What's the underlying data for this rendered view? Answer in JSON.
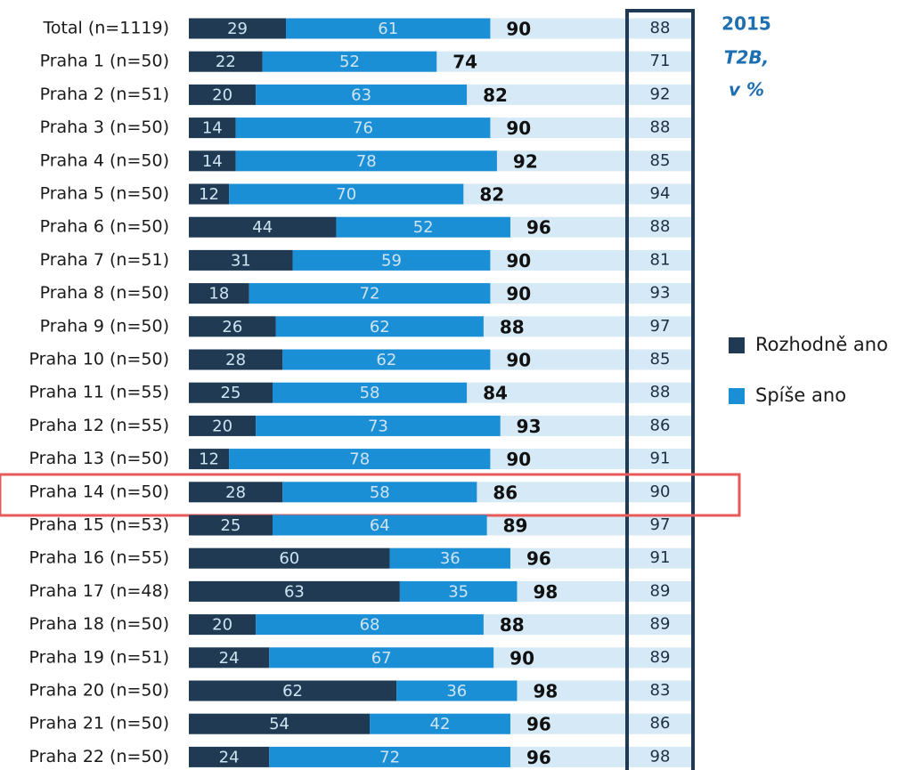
{
  "chart_data": {
    "type": "bar",
    "orientation": "horizontal",
    "stacked": true,
    "categories": [
      "Total (n=1119)",
      "Praha 1 (n=50)",
      "Praha 2 (n=51)",
      "Praha 3 (n=50)",
      "Praha 4 (n=50)",
      "Praha 5 (n=50)",
      "Praha 6 (n=50)",
      "Praha 7 (n=51)",
      "Praha 8 (n=50)",
      "Praha 9 (n=50)",
      "Praha 10 (n=50)",
      "Praha 11 (n=55)",
      "Praha 12 (n=55)",
      "Praha 13 (n=50)",
      "Praha 14 (n=50)",
      "Praha 15 (n=53)",
      "Praha 16 (n=55)",
      "Praha 17 (n=48)",
      "Praha 18 (n=50)",
      "Praha 19 (n=51)",
      "Praha 20 (n=50)",
      "Praha 21 (n=50)",
      "Praha 22 (n=50)"
    ],
    "series": [
      {
        "name": "Rozhodně ano",
        "color": "#1f3a52",
        "values": [
          29,
          22,
          20,
          14,
          14,
          12,
          44,
          31,
          18,
          26,
          28,
          25,
          20,
          12,
          28,
          25,
          60,
          63,
          20,
          24,
          62,
          54,
          24
        ]
      },
      {
        "name": "Spíše ano",
        "color": "#1b8fd6",
        "values": [
          61,
          52,
          63,
          76,
          78,
          70,
          52,
          59,
          72,
          62,
          62,
          58,
          73,
          78,
          58,
          64,
          36,
          35,
          68,
          67,
          36,
          42,
          72
        ]
      }
    ],
    "totals": [
      90,
      74,
      82,
      90,
      92,
      82,
      96,
      90,
      90,
      88,
      90,
      84,
      93,
      90,
      86,
      89,
      96,
      98,
      88,
      90,
      98,
      96,
      96
    ],
    "column_title": [
      "2015",
      "T2B,",
      "v %"
    ],
    "column_values": [
      88,
      71,
      92,
      88,
      85,
      94,
      88,
      81,
      93,
      97,
      85,
      88,
      86,
      91,
      90,
      97,
      91,
      89,
      89,
      89,
      83,
      86,
      98
    ],
    "legend_position": "right"
  }
}
